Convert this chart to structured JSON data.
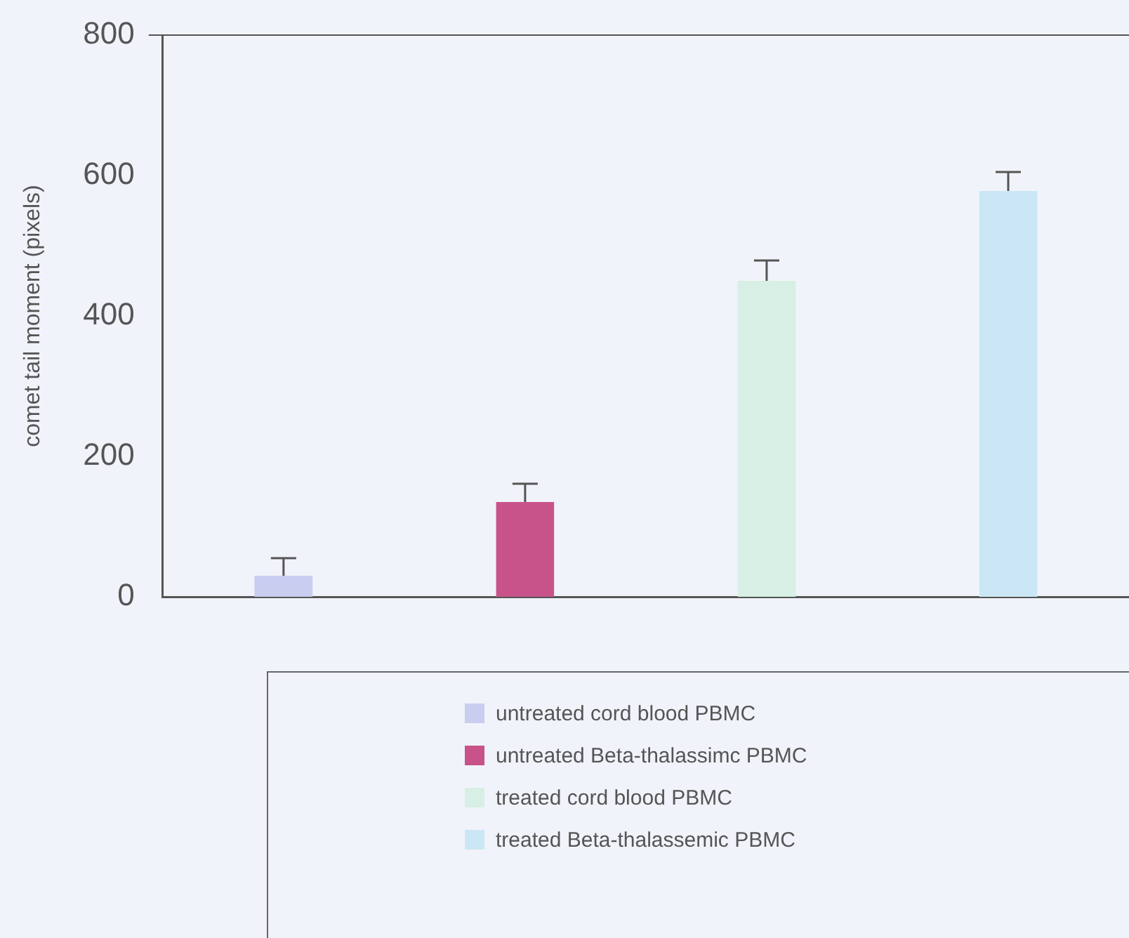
{
  "chart_data": {
    "type": "bar",
    "ylabel": "comet tail moment (pixels)",
    "categories": [
      null,
      null,
      null,
      null
    ],
    "series": [
      {
        "name": "untreated cord blood PBMC",
        "color": "#c9cdef",
        "values": [
          30,
          null,
          null,
          null
        ],
        "errors": [
          [
            30,
            55
          ],
          null,
          null,
          null
        ]
      },
      {
        "name": "untreated Beta-thalassimc PBMC",
        "color": "#c8538a",
        "values": [
          null,
          135,
          null,
          null
        ],
        "errors": [
          null,
          [
            135,
            161
          ],
          null,
          null
        ]
      },
      {
        "name": "treated cord blood PBMC",
        "color": "#d7efe4",
        "values": [
          null,
          null,
          450,
          null
        ],
        "errors": [
          null,
          null,
          [
            450,
            479
          ],
          null
        ]
      },
      {
        "name": "treated Beta-thalassemic PBMC",
        "color": "#cbe7f5",
        "values": [
          null,
          null,
          null,
          578
        ],
        "errors": [
          null,
          null,
          null,
          [
            578,
            605
          ]
        ]
      }
    ],
    "ylim": [
      0,
      800
    ],
    "yticks": [
      0,
      200,
      400,
      600,
      800
    ],
    "grid": false,
    "legend": "bottom",
    "tick_labels": "y"
  }
}
